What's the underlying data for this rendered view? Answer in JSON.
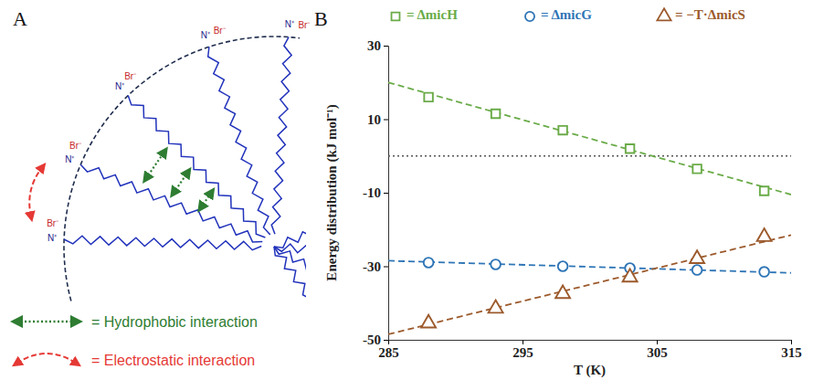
{
  "chart_data": {
    "type": "scatter",
    "panel_label": "B",
    "x_label": "T (K)",
    "y_label": "Energy distribution (kJ mol⁻¹)",
    "x": [
      288,
      293,
      298,
      303,
      308,
      313
    ],
    "series": [
      {
        "name": "= ΔmicH",
        "color": "#6aab48",
        "marker": "square",
        "line_style": "dashed",
        "values": [
          16,
          11.5,
          7,
          2,
          -3.5,
          -9.5
        ],
        "trend": {
          "x": [
            285,
            315
          ],
          "values": [
            20,
            -10.5
          ]
        }
      },
      {
        "name": "= ΔmicG",
        "color": "#2e75b6",
        "marker": "circle",
        "line_style": "dashed",
        "values": [
          -29,
          -29.5,
          -30,
          -30.5,
          -31,
          -31.5
        ],
        "trend": {
          "x": [
            285,
            315
          ],
          "values": [
            -28.5,
            -31.8
          ]
        }
      },
      {
        "name": "= −T·ΔmicS",
        "color": "#9c5a2c",
        "marker": "triangle",
        "line_style": "dashed",
        "values": [
          -45.5,
          -41.5,
          -37.5,
          -33,
          -28,
          -22
        ],
        "trend": {
          "x": [
            285,
            315
          ],
          "values": [
            -48.5,
            -21.5
          ]
        }
      }
    ],
    "hline": 0,
    "xlim": [
      285,
      315
    ],
    "xticks": [
      285,
      295,
      305,
      315
    ],
    "ylim": [
      -50,
      30
    ],
    "yticks": [
      -50,
      -30,
      -10,
      10,
      30
    ],
    "legend": "top"
  },
  "diagram": {
    "panel_label": "A",
    "heads": [
      {
        "label": "N⁺",
        "counterion": "Br⁻"
      },
      {
        "label": "N⁺",
        "counterion": "Br⁻"
      },
      {
        "label": "N⁺",
        "counterion": "Br⁻"
      },
      {
        "label": "N⁺",
        "counterion": "Br⁻"
      },
      {
        "label": "N⁺",
        "counterion": "Br⁻"
      }
    ],
    "legend": [
      {
        "text": "= Hydrophobic interaction",
        "color": "#2e7d32"
      },
      {
        "text": "= Electrostatic interaction",
        "color": "#e53935"
      }
    ]
  }
}
